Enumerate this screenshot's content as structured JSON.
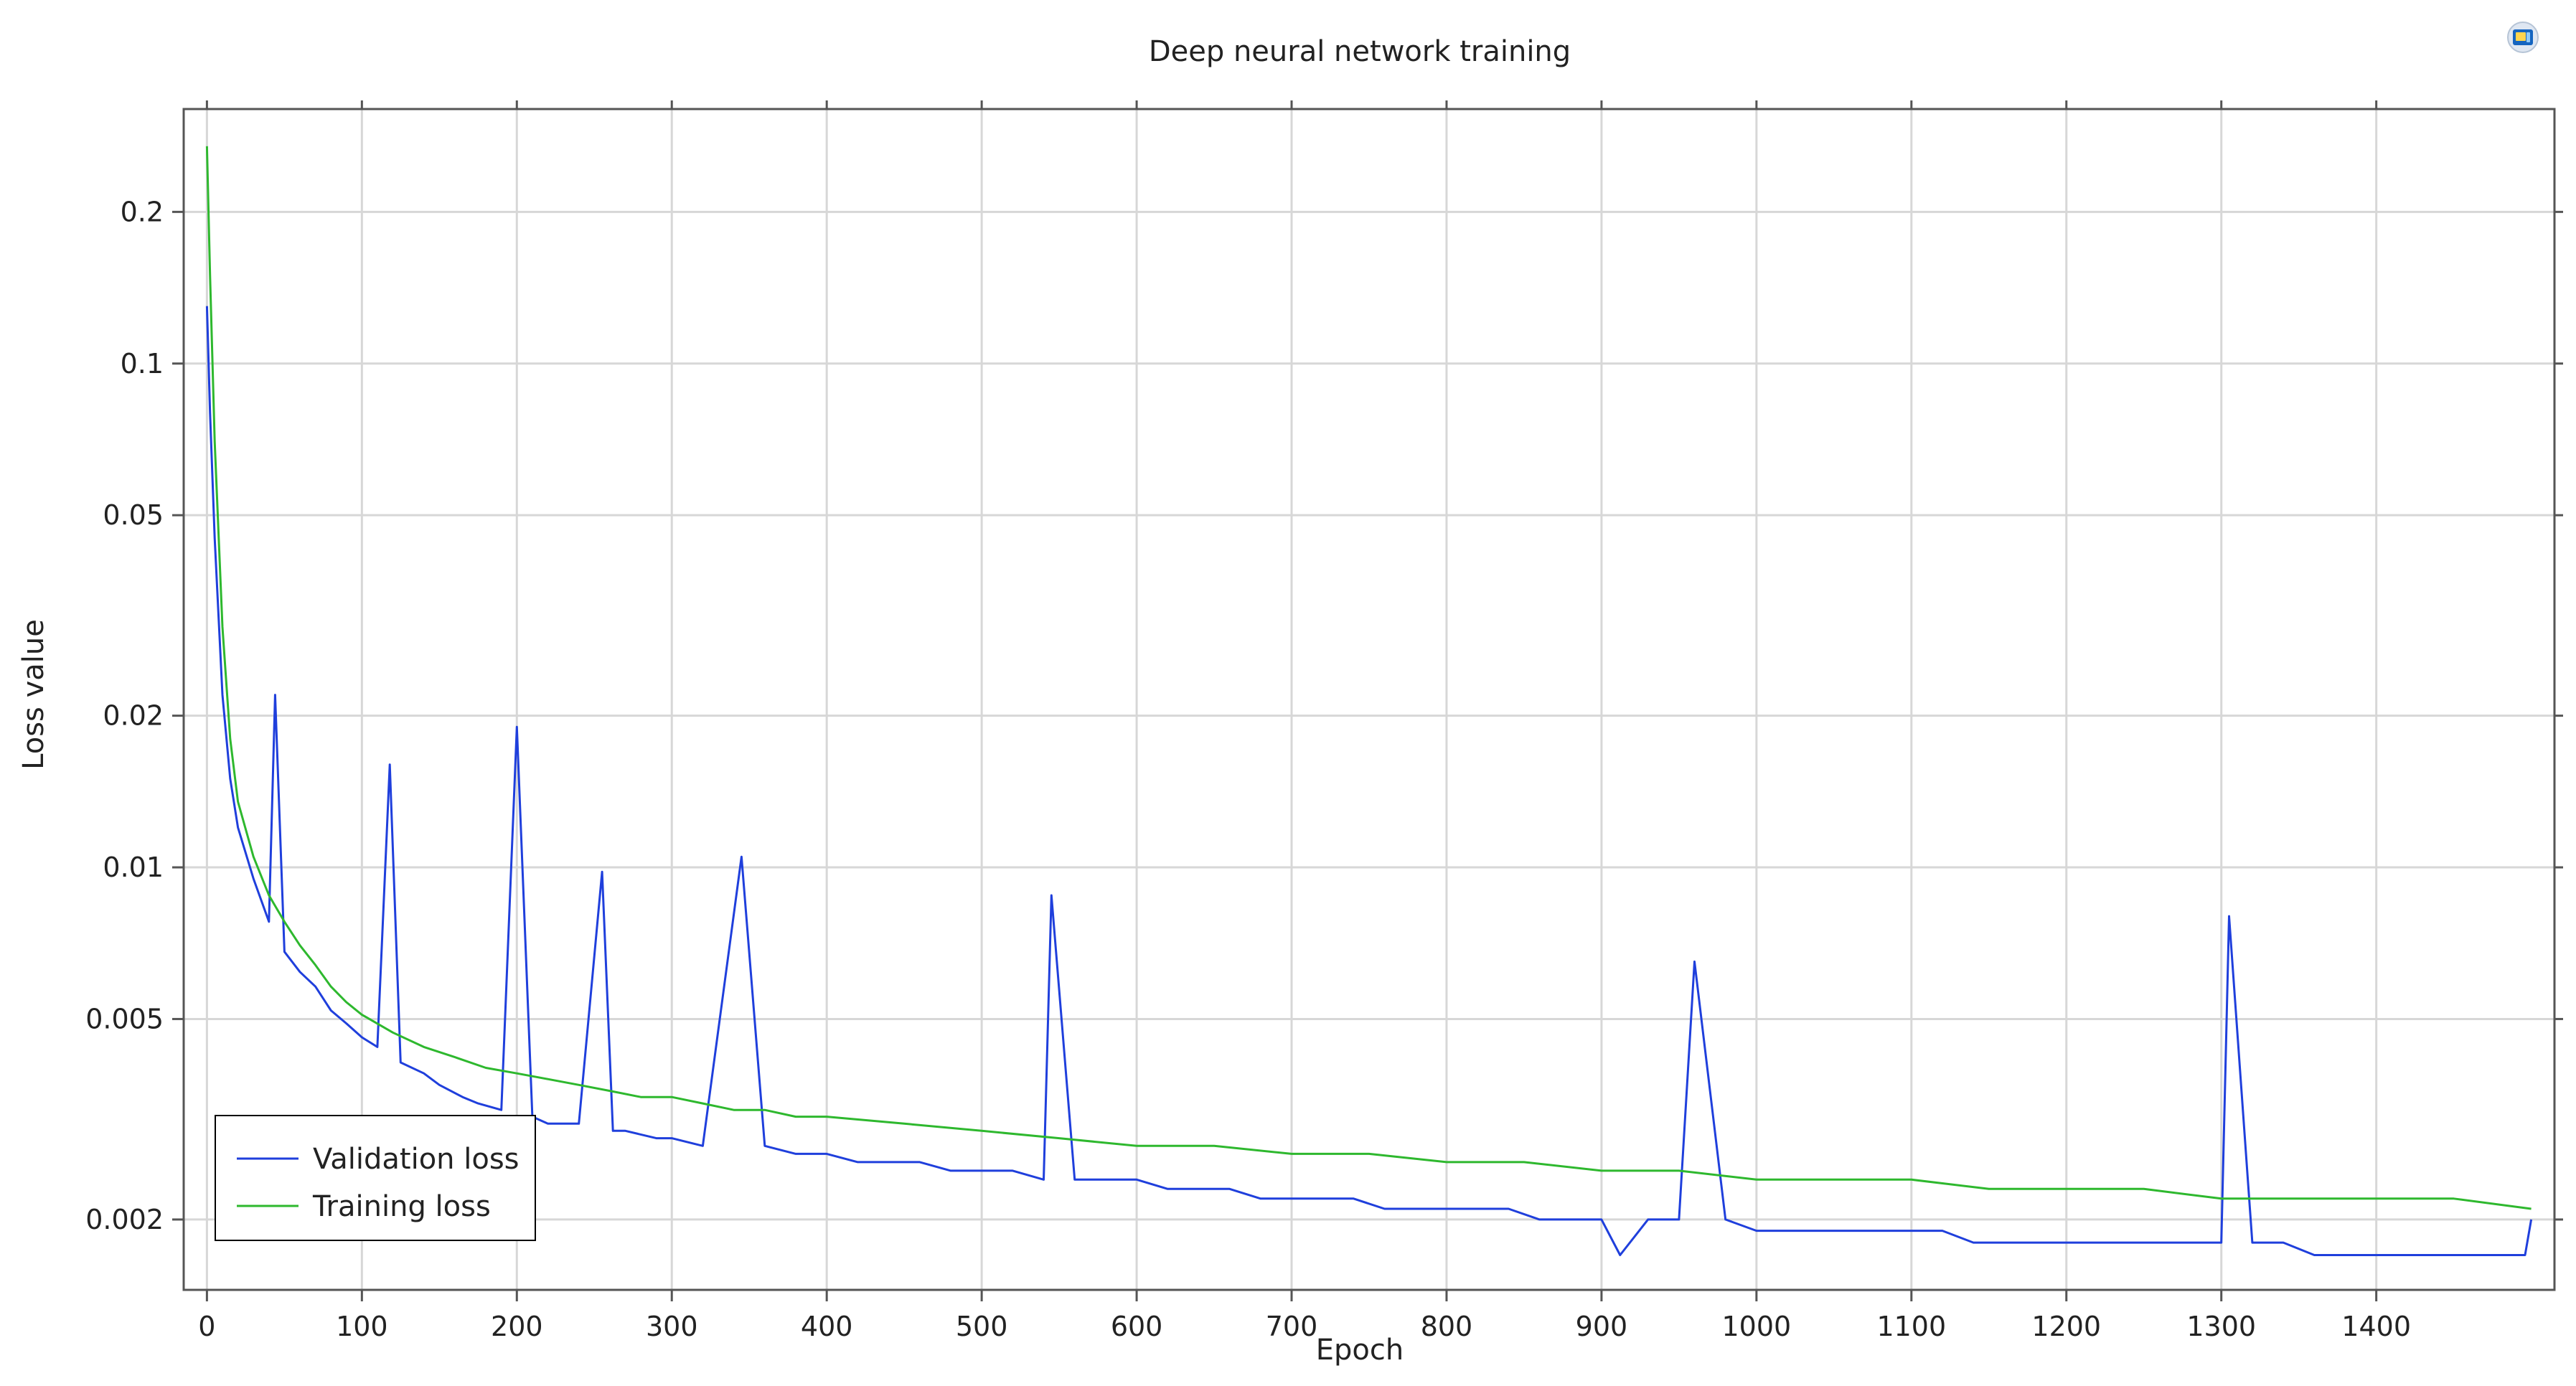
{
  "chart_data": {
    "type": "line",
    "title": "Deep neural network training",
    "xlabel": "Epoch",
    "ylabel": "Loss value",
    "y_scale": "log",
    "xlim": [
      -15,
      1515
    ],
    "ylim": [
      0.00145,
      0.32
    ],
    "grid": true,
    "legend_position": "bottom-left",
    "x_ticks": [
      0,
      100,
      200,
      300,
      400,
      500,
      600,
      700,
      800,
      900,
      1000,
      1100,
      1200,
      1300,
      1400
    ],
    "x_tick_labels": [
      "0",
      "100",
      "200",
      "300",
      "400",
      "500",
      "600",
      "700",
      "800",
      "900",
      "1000",
      "1100",
      "1200",
      "1300",
      "1400"
    ],
    "y_ticks": [
      0.002,
      0.005,
      0.01,
      0.02,
      0.05,
      0.1,
      0.2
    ],
    "y_tick_labels": [
      "0.002",
      "0.005",
      "0.01",
      "0.02",
      "0.05",
      "0.1",
      "0.2"
    ],
    "series": [
      {
        "name": "Validation loss",
        "color": "#1f3fdc",
        "x": [
          0,
          2,
          5,
          10,
          15,
          20,
          30,
          40,
          44,
          50,
          60,
          70,
          80,
          90,
          100,
          110,
          118,
          125,
          140,
          150,
          165,
          175,
          190,
          200,
          210,
          220,
          240,
          255,
          262,
          270,
          290,
          300,
          320,
          345,
          360,
          380,
          400,
          420,
          440,
          460,
          480,
          500,
          520,
          540,
          545,
          560,
          580,
          600,
          620,
          640,
          660,
          680,
          700,
          720,
          740,
          760,
          780,
          800,
          820,
          840,
          860,
          880,
          900,
          912,
          930,
          950,
          960,
          980,
          1000,
          1020,
          1040,
          1060,
          1080,
          1100,
          1120,
          1140,
          1160,
          1180,
          1200,
          1220,
          1240,
          1260,
          1280,
          1300,
          1305,
          1320,
          1340,
          1360,
          1380,
          1400,
          1420,
          1440,
          1460,
          1480,
          1496,
          1500
        ],
        "y": [
          0.13,
          0.08,
          0.045,
          0.022,
          0.015,
          0.012,
          0.0095,
          0.0078,
          0.022,
          0.0068,
          0.0062,
          0.0058,
          0.0052,
          0.0049,
          0.0046,
          0.0044,
          0.016,
          0.0041,
          0.0039,
          0.0037,
          0.0035,
          0.0034,
          0.0033,
          0.019,
          0.0032,
          0.0031,
          0.0031,
          0.0098,
          0.003,
          0.003,
          0.0029,
          0.0029,
          0.0028,
          0.0105,
          0.0028,
          0.0027,
          0.0027,
          0.0026,
          0.0026,
          0.0026,
          0.0025,
          0.0025,
          0.0025,
          0.0024,
          0.0088,
          0.0024,
          0.0024,
          0.0024,
          0.0023,
          0.0023,
          0.0023,
          0.0022,
          0.0022,
          0.0022,
          0.0022,
          0.0021,
          0.0021,
          0.0021,
          0.0021,
          0.0021,
          0.002,
          0.002,
          0.002,
          0.0017,
          0.002,
          0.002,
          0.0065,
          0.002,
          0.0019,
          0.0019,
          0.0019,
          0.0019,
          0.0019,
          0.0019,
          0.0019,
          0.0018,
          0.0018,
          0.0018,
          0.0018,
          0.0018,
          0.0018,
          0.0018,
          0.0018,
          0.0018,
          0.008,
          0.0018,
          0.0018,
          0.0017,
          0.0017,
          0.0017,
          0.0017,
          0.0017,
          0.0017,
          0.0017,
          0.0017,
          0.002
        ]
      },
      {
        "name": "Training loss",
        "color": "#2eb82e",
        "x": [
          0,
          2,
          5,
          10,
          15,
          20,
          30,
          40,
          50,
          60,
          70,
          80,
          90,
          100,
          120,
          140,
          160,
          180,
          200,
          220,
          240,
          260,
          280,
          300,
          320,
          340,
          360,
          380,
          400,
          450,
          500,
          550,
          600,
          650,
          700,
          750,
          800,
          850,
          900,
          950,
          1000,
          1050,
          1100,
          1150,
          1200,
          1250,
          1300,
          1350,
          1400,
          1450,
          1500
        ],
        "y": [
          0.27,
          0.15,
          0.07,
          0.03,
          0.018,
          0.0135,
          0.0105,
          0.0088,
          0.0078,
          0.007,
          0.0064,
          0.0058,
          0.0054,
          0.0051,
          0.0047,
          0.0044,
          0.0042,
          0.004,
          0.0039,
          0.0038,
          0.0037,
          0.0036,
          0.0035,
          0.0035,
          0.0034,
          0.0033,
          0.0033,
          0.0032,
          0.0032,
          0.0031,
          0.003,
          0.0029,
          0.0028,
          0.0028,
          0.0027,
          0.0027,
          0.0026,
          0.0026,
          0.0025,
          0.0025,
          0.0024,
          0.0024,
          0.0024,
          0.0023,
          0.0023,
          0.0023,
          0.0022,
          0.0022,
          0.0022,
          0.0022,
          0.0021
        ]
      }
    ]
  }
}
